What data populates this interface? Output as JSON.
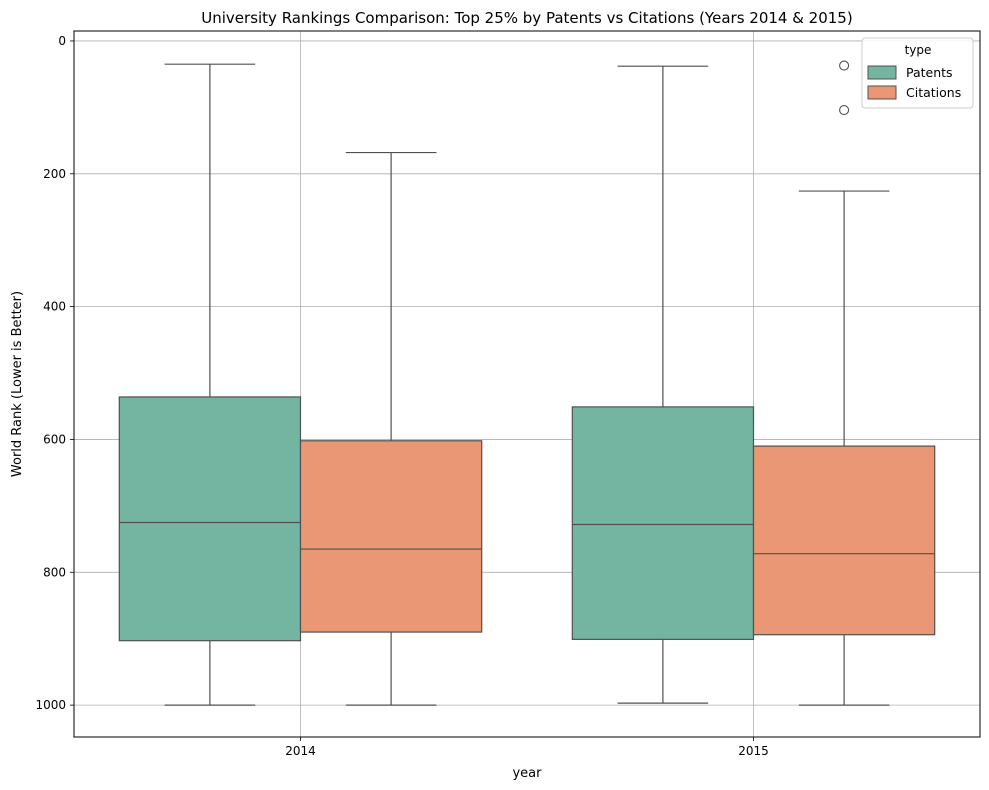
{
  "chart_data": {
    "type": "box",
    "title": "University Rankings Comparison: Top  25% by Patents vs Citations (Years 2014 & 2015)",
    "xlabel": "year",
    "ylabel": "World Rank (Lower is Better)",
    "categories": [
      "2014",
      "2015"
    ],
    "y_inverted": true,
    "ylim": [
      -15,
      1048
    ],
    "yticks": [
      0,
      200,
      400,
      600,
      800,
      1000
    ],
    "grid": true,
    "legend": {
      "title": "type",
      "placement": "top-right"
    },
    "series": [
      {
        "name": "Patents",
        "color": "#74b5a1",
        "boxes": [
          {
            "category": "2014",
            "whisker_low": 35,
            "q1": 536,
            "median": 725,
            "q3": 903,
            "whisker_high": 1000,
            "outliers": []
          },
          {
            "category": "2015",
            "whisker_low": 38,
            "q1": 551,
            "median": 728,
            "q3": 901,
            "whisker_high": 997,
            "outliers": []
          }
        ]
      },
      {
        "name": "Citations",
        "color": "#e99775",
        "boxes": [
          {
            "category": "2014",
            "whisker_low": 168,
            "q1": 602,
            "median": 765,
            "q3": 890,
            "whisker_high": 1000,
            "outliers": []
          },
          {
            "category": "2015",
            "whisker_low": 226,
            "q1": 610,
            "median": 772,
            "q3": 894,
            "whisker_high": 1000,
            "outliers": [
              37,
              104
            ]
          }
        ]
      }
    ]
  }
}
